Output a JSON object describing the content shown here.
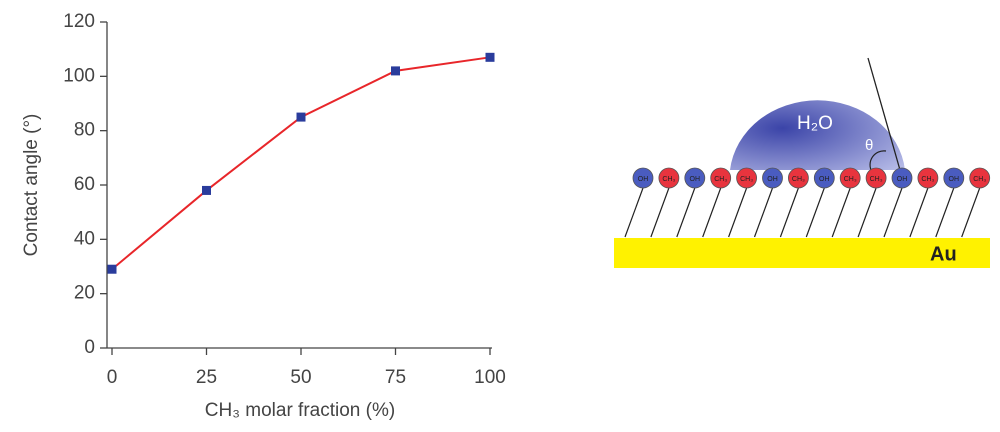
{
  "chart_data": {
    "type": "line",
    "x_label": "CH₃ molar fraction (%)",
    "y_label": "Contact angle (°)",
    "x": [
      0,
      25,
      50,
      75,
      100
    ],
    "series": [
      {
        "color": "#e8262a",
        "marker_color": "#2a3c9c",
        "values": [
          29,
          58,
          85,
          102,
          107
        ]
      }
    ],
    "xlim": [
      0,
      100
    ],
    "xticks": [
      0,
      25,
      50,
      75,
      100
    ],
    "ylim": [
      0,
      120
    ],
    "yticks": [
      0,
      20,
      40,
      60,
      80,
      100,
      120
    ]
  },
  "diagram": {
    "drop_label": "H₂O",
    "angle_label": "θ",
    "substrate_label": "Au",
    "molecules": [
      {
        "label": "OH",
        "color": "#4a5cc0"
      },
      {
        "label": "CH₃",
        "color": "#e8343e"
      },
      {
        "label": "OH",
        "color": "#4a5cc0"
      },
      {
        "label": "CH₃",
        "color": "#e8343e"
      },
      {
        "label": "CH₃",
        "color": "#e8343e"
      },
      {
        "label": "OH",
        "color": "#4a5cc0"
      },
      {
        "label": "CH₃",
        "color": "#e8343e"
      },
      {
        "label": "OH",
        "color": "#4a5cc0"
      },
      {
        "label": "CH₃",
        "color": "#e8343e"
      },
      {
        "label": "CH₃",
        "color": "#e8343e"
      },
      {
        "label": "OH",
        "color": "#4a5cc0"
      },
      {
        "label": "CH₃",
        "color": "#e8343e"
      },
      {
        "label": "OH",
        "color": "#4a5cc0"
      },
      {
        "label": "CH₃",
        "color": "#e8343e"
      }
    ]
  }
}
